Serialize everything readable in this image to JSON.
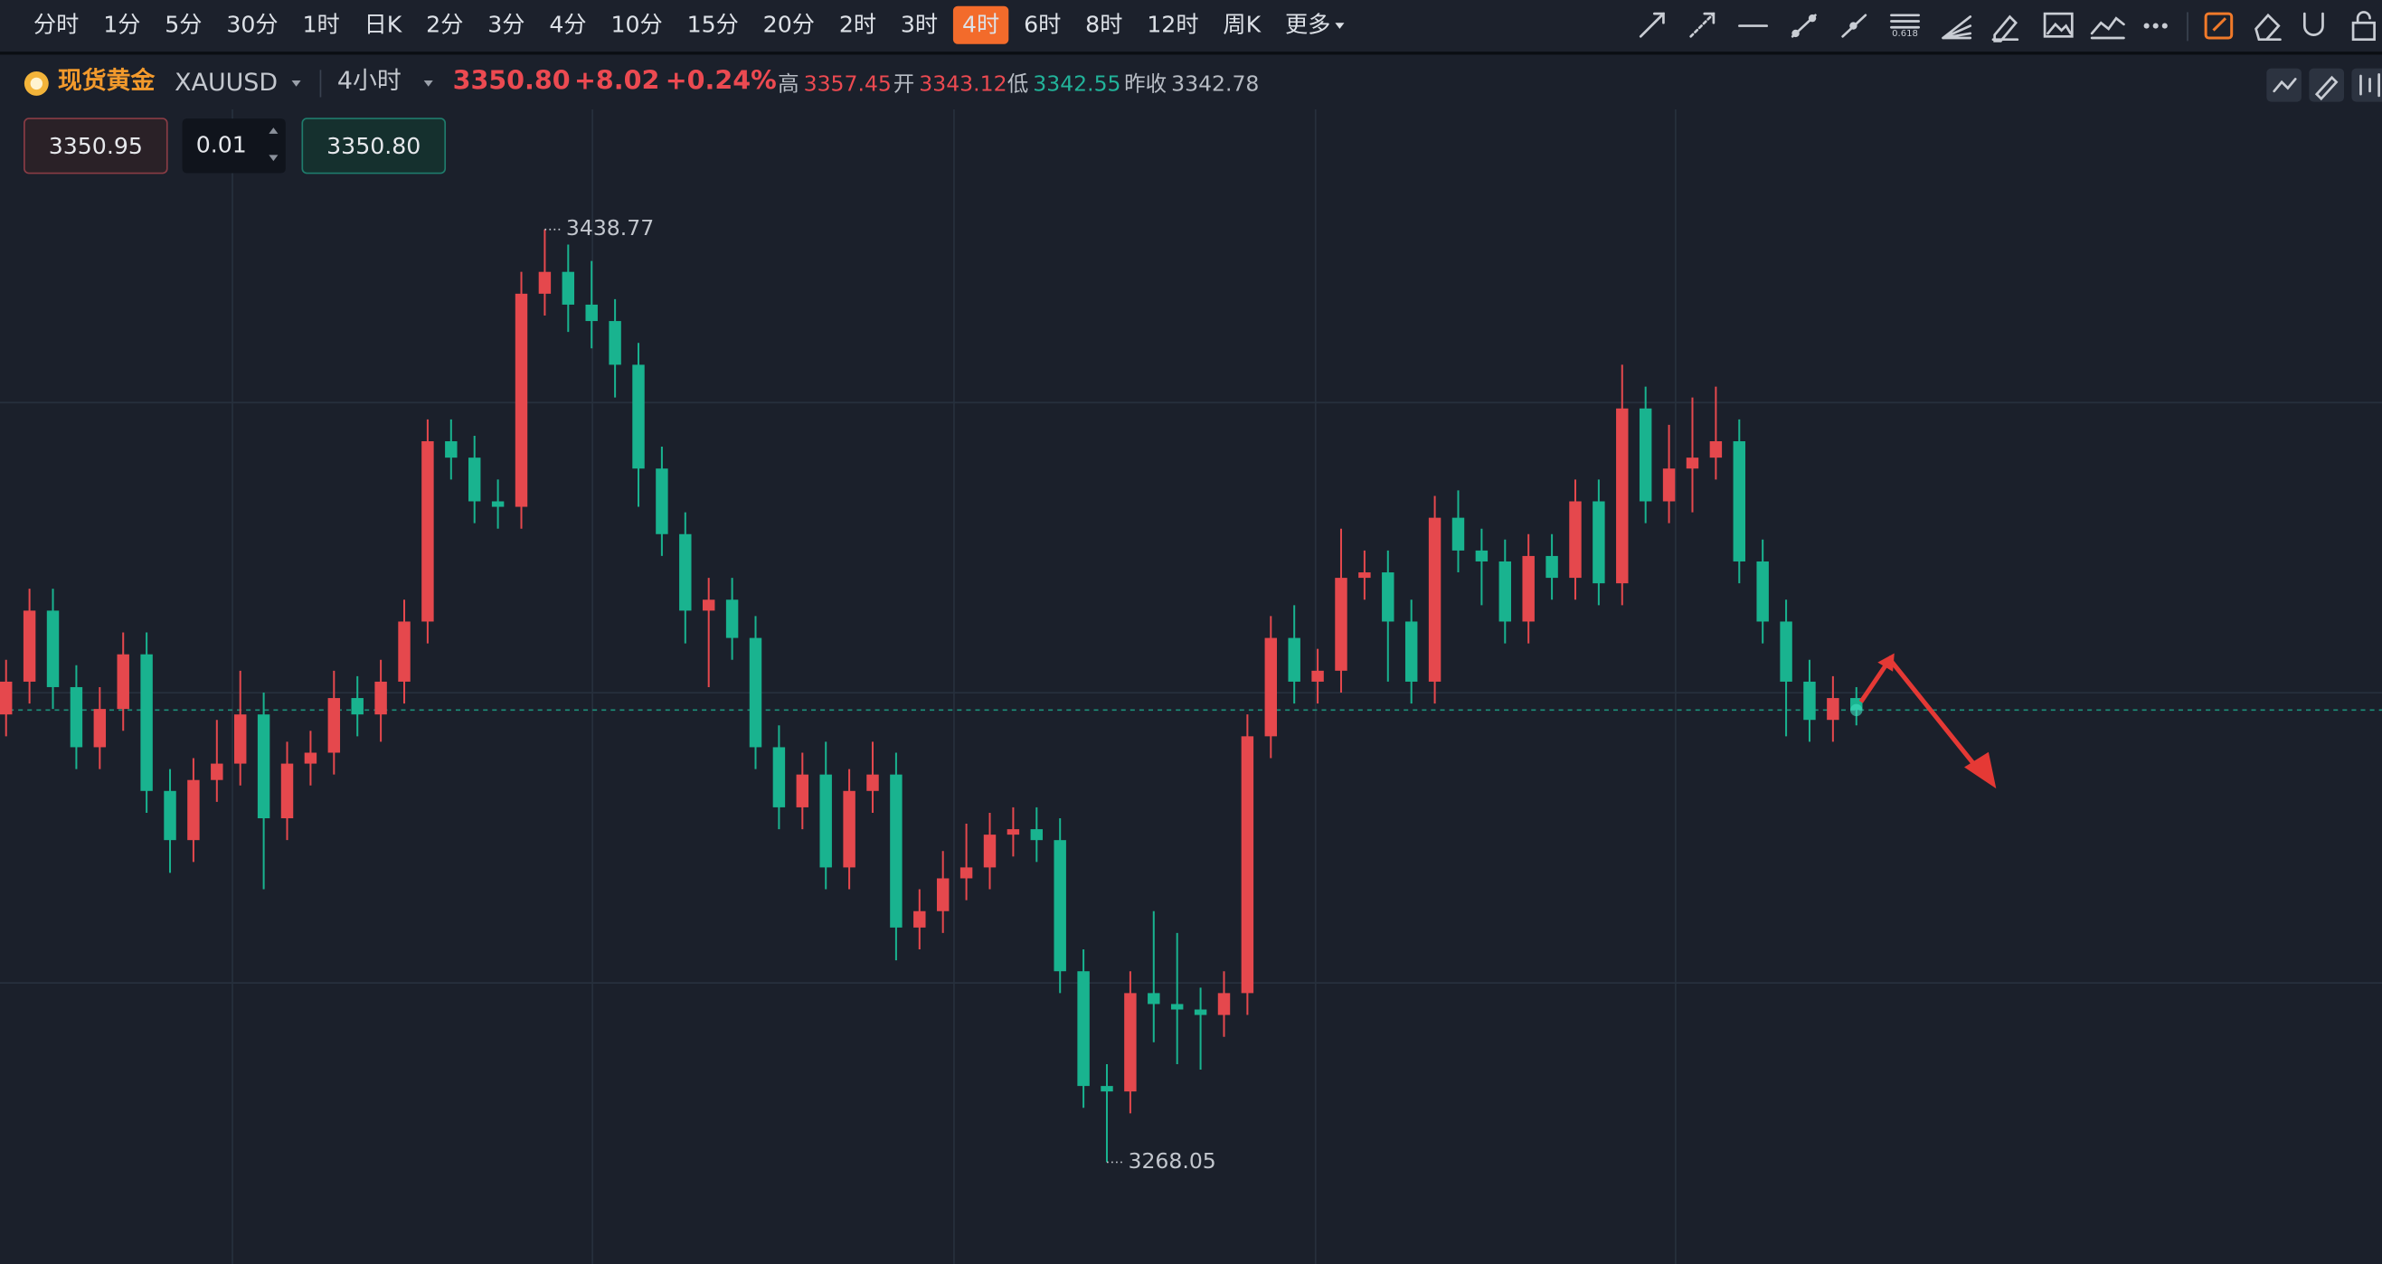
{
  "toolbar": {
    "intervals": [
      {
        "label": "分时"
      },
      {
        "label": "1分"
      },
      {
        "label": "5分"
      },
      {
        "label": "30分"
      },
      {
        "label": "1时"
      },
      {
        "label": "日K"
      },
      {
        "label": "2分"
      },
      {
        "label": "3分"
      },
      {
        "label": "4分"
      },
      {
        "label": "10分"
      },
      {
        "label": "15分"
      },
      {
        "label": "20分"
      },
      {
        "label": "2时"
      },
      {
        "label": "3时"
      },
      {
        "label": "4时",
        "active": true
      },
      {
        "label": "6时"
      },
      {
        "label": "8时"
      },
      {
        "label": "12时"
      },
      {
        "label": "周K"
      },
      {
        "label": "更多"
      }
    ]
  },
  "header": {
    "name": "现货黄金",
    "symbol": "XAUUSD",
    "period": "4小时",
    "price": "3350.80",
    "change": "+8.02",
    "change_pct": "+0.24%",
    "high_label": "高",
    "high": "3357.45",
    "open_label": "开",
    "open": "3343.12",
    "low_label": "低",
    "low": "3342.55",
    "prev_close_label": "昨收",
    "prev_close": "3342.78"
  },
  "order": {
    "sell_price": "3350.95",
    "lots": "0.01",
    "buy_price": "3350.80"
  },
  "chart_data": {
    "type": "candlestick",
    "up_color": "#e5484d",
    "down_color": "#19b38f",
    "candles": [
      [
        3350,
        3360,
        3346,
        3356
      ],
      [
        3356,
        3373,
        3352,
        3369
      ],
      [
        3369,
        3373,
        3351,
        3355
      ],
      [
        3355,
        3359,
        3340,
        3344
      ],
      [
        3344,
        3355,
        3340,
        3351
      ],
      [
        3351,
        3365,
        3347,
        3361
      ],
      [
        3361,
        3365,
        3332,
        3336
      ],
      [
        3336,
        3340,
        3321,
        3327
      ],
      [
        3327,
        3342,
        3323,
        3338
      ],
      [
        3338,
        3349,
        3334,
        3341
      ],
      [
        3341,
        3358,
        3337,
        3350
      ],
      [
        3350,
        3354,
        3318,
        3331
      ],
      [
        3331,
        3345,
        3327,
        3341
      ],
      [
        3341,
        3347,
        3337,
        3343
      ],
      [
        3343,
        3358,
        3339,
        3353
      ],
      [
        3353,
        3357,
        3346,
        3350
      ],
      [
        3350,
        3360,
        3345,
        3356
      ],
      [
        3356,
        3371,
        3352,
        3367
      ],
      [
        3367,
        3404,
        3363,
        3400
      ],
      [
        3400,
        3404,
        3393,
        3397
      ],
      [
        3397,
        3401,
        3385,
        3389
      ],
      [
        3389,
        3393,
        3384,
        3388
      ],
      [
        3388,
        3431,
        3384,
        3427
      ],
      [
        3427,
        3438.77,
        3423,
        3431
      ],
      [
        3431,
        3436,
        3420,
        3425
      ],
      [
        3425,
        3433,
        3417,
        3422
      ],
      [
        3422,
        3426,
        3408,
        3414
      ],
      [
        3414,
        3418,
        3388,
        3395
      ],
      [
        3395,
        3399,
        3379,
        3383
      ],
      [
        3383,
        3387,
        3363,
        3369
      ],
      [
        3369,
        3375,
        3355,
        3371
      ],
      [
        3371,
        3375,
        3360,
        3364
      ],
      [
        3364,
        3368,
        3340,
        3344
      ],
      [
        3344,
        3348,
        3329,
        3333
      ],
      [
        3333,
        3343,
        3329,
        3339
      ],
      [
        3339,
        3345,
        3318,
        3322
      ],
      [
        3322,
        3340,
        3318,
        3336
      ],
      [
        3336,
        3345,
        3332,
        3339
      ],
      [
        3339,
        3343,
        3305,
        3311
      ],
      [
        3311,
        3318,
        3307,
        3314
      ],
      [
        3314,
        3325,
        3310,
        3320
      ],
      [
        3320,
        3330,
        3316,
        3322
      ],
      [
        3322,
        3332,
        3318,
        3328
      ],
      [
        3328,
        3333,
        3324,
        3329
      ],
      [
        3329,
        3333,
        3323,
        3327
      ],
      [
        3327,
        3331,
        3299,
        3303
      ],
      [
        3303,
        3307,
        3278,
        3282
      ],
      [
        3282,
        3286,
        3268.05,
        3281
      ],
      [
        3281,
        3303,
        3277,
        3299
      ],
      [
        3299,
        3314,
        3290,
        3297
      ],
      [
        3297,
        3310,
        3286,
        3296
      ],
      [
        3296,
        3300,
        3285,
        3295
      ],
      [
        3295,
        3303,
        3291,
        3299
      ],
      [
        3299,
        3350,
        3295,
        3346
      ],
      [
        3346,
        3368,
        3342,
        3364
      ],
      [
        3364,
        3370,
        3352,
        3356
      ],
      [
        3356,
        3362,
        3352,
        3358
      ],
      [
        3358,
        3384,
        3354,
        3375
      ],
      [
        3375,
        3380,
        3371,
        3376
      ],
      [
        3376,
        3380,
        3356,
        3367
      ],
      [
        3367,
        3371,
        3352,
        3356
      ],
      [
        3356,
        3390,
        3352,
        3386
      ],
      [
        3386,
        3391,
        3376,
        3380
      ],
      [
        3380,
        3384,
        3370,
        3378
      ],
      [
        3378,
        3382,
        3363,
        3367
      ],
      [
        3367,
        3383,
        3363,
        3379
      ],
      [
        3379,
        3383,
        3371,
        3375
      ],
      [
        3375,
        3393,
        3371,
        3389
      ],
      [
        3389,
        3393,
        3370,
        3374
      ],
      [
        3374,
        3414,
        3370,
        3406
      ],
      [
        3406,
        3410,
        3385,
        3389
      ],
      [
        3389,
        3403,
        3385,
        3395
      ],
      [
        3395,
        3408,
        3387,
        3397
      ],
      [
        3397,
        3410,
        3393,
        3400
      ],
      [
        3400,
        3404,
        3374,
        3378
      ],
      [
        3378,
        3382,
        3363,
        3367
      ],
      [
        3367,
        3371,
        3346,
        3356
      ],
      [
        3356,
        3360,
        3345,
        3349
      ],
      [
        3349,
        3357,
        3345,
        3353
      ],
      [
        3353,
        3355,
        3348,
        3350.8
      ]
    ]
  }
}
